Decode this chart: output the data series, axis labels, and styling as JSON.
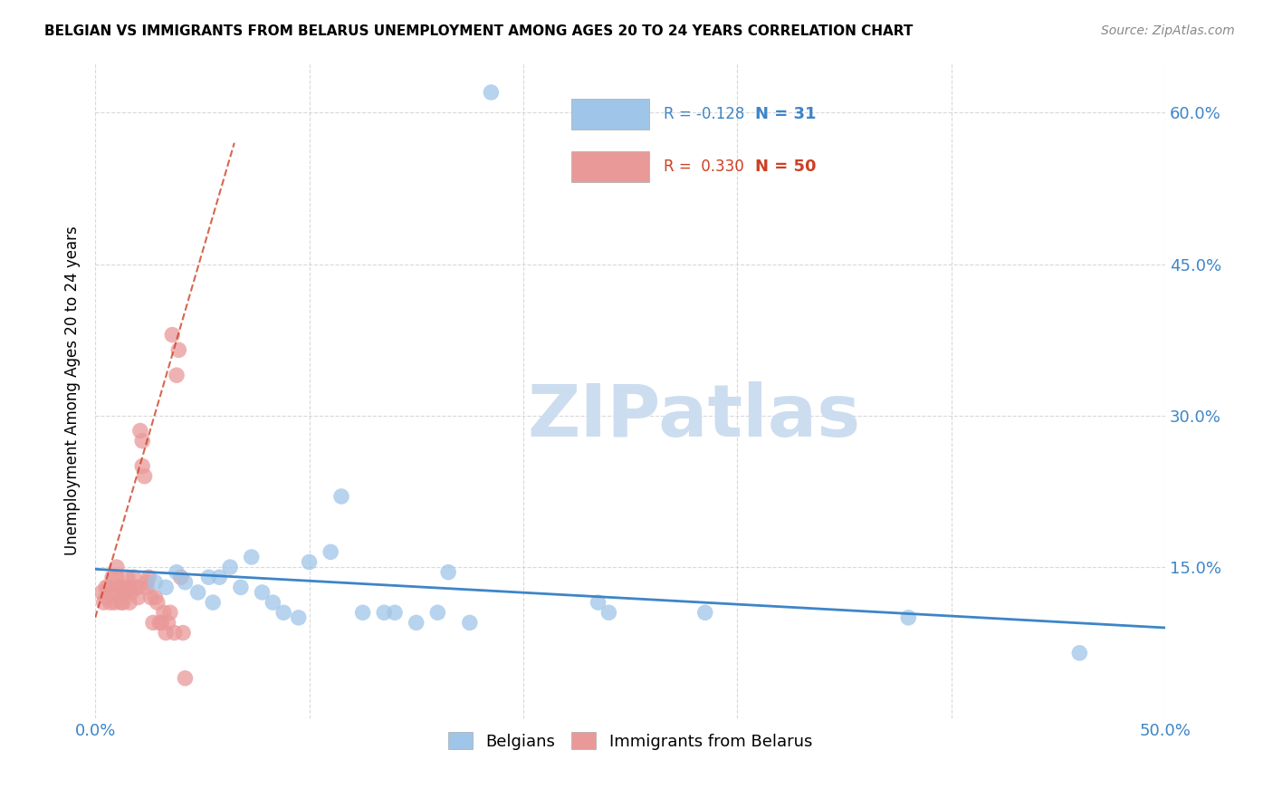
{
  "title": "BELGIAN VS IMMIGRANTS FROM BELARUS UNEMPLOYMENT AMONG AGES 20 TO 24 YEARS CORRELATION CHART",
  "source": "Source: ZipAtlas.com",
  "ylabel": "Unemployment Among Ages 20 to 24 years",
  "xlim": [
    0.0,
    0.5
  ],
  "ylim": [
    0.0,
    0.65
  ],
  "yticks": [
    0.0,
    0.15,
    0.3,
    0.45,
    0.6
  ],
  "ytick_labels": [
    "",
    "15.0%",
    "30.0%",
    "45.0%",
    "60.0%"
  ],
  "xticks": [
    0.0,
    0.1,
    0.2,
    0.3,
    0.4,
    0.5
  ],
  "xtick_labels": [
    "0.0%",
    "",
    "",
    "",
    "",
    "50.0%"
  ],
  "background_color": "#ffffff",
  "grid_color": "#d0d0d0",
  "watermark_text": "ZIPatlas",
  "legend_R_blue": "-0.128",
  "legend_N_blue": "31",
  "legend_R_pink": "0.330",
  "legend_N_pink": "50",
  "blue_color": "#9fc5e8",
  "pink_color": "#ea9999",
  "blue_line_color": "#3d85c8",
  "pink_line_color": "#cc4125",
  "belgians_x": [
    0.028,
    0.033,
    0.038,
    0.042,
    0.048,
    0.053,
    0.055,
    0.058,
    0.063,
    0.068,
    0.073,
    0.078,
    0.083,
    0.088,
    0.095,
    0.1,
    0.11,
    0.115,
    0.125,
    0.135,
    0.14,
    0.15,
    0.16,
    0.165,
    0.175,
    0.185,
    0.235,
    0.24,
    0.285,
    0.38,
    0.46
  ],
  "belgians_y": [
    0.135,
    0.13,
    0.145,
    0.135,
    0.125,
    0.14,
    0.115,
    0.14,
    0.15,
    0.13,
    0.16,
    0.125,
    0.115,
    0.105,
    0.1,
    0.155,
    0.165,
    0.22,
    0.105,
    0.105,
    0.105,
    0.095,
    0.105,
    0.145,
    0.095,
    0.62,
    0.115,
    0.105,
    0.105,
    0.1,
    0.065
  ],
  "belarus_x": [
    0.003,
    0.004,
    0.005,
    0.005,
    0.006,
    0.007,
    0.008,
    0.008,
    0.009,
    0.01,
    0.01,
    0.011,
    0.012,
    0.012,
    0.013,
    0.013,
    0.014,
    0.015,
    0.015,
    0.016,
    0.016,
    0.017,
    0.018,
    0.019,
    0.02,
    0.02,
    0.021,
    0.022,
    0.022,
    0.023,
    0.024,
    0.024,
    0.025,
    0.026,
    0.027,
    0.028,
    0.029,
    0.03,
    0.031,
    0.032,
    0.033,
    0.034,
    0.035,
    0.036,
    0.037,
    0.038,
    0.039,
    0.04,
    0.041,
    0.042
  ],
  "belarus_y": [
    0.125,
    0.115,
    0.13,
    0.12,
    0.13,
    0.115,
    0.14,
    0.125,
    0.115,
    0.15,
    0.14,
    0.13,
    0.125,
    0.115,
    0.13,
    0.115,
    0.125,
    0.14,
    0.13,
    0.13,
    0.115,
    0.125,
    0.14,
    0.13,
    0.13,
    0.12,
    0.285,
    0.275,
    0.25,
    0.24,
    0.135,
    0.13,
    0.14,
    0.12,
    0.095,
    0.12,
    0.115,
    0.095,
    0.095,
    0.105,
    0.085,
    0.095,
    0.105,
    0.38,
    0.085,
    0.34,
    0.365,
    0.14,
    0.085,
    0.04
  ],
  "blue_line_x0": 0.0,
  "blue_line_y0": 0.148,
  "blue_line_x1": 0.5,
  "blue_line_y1": 0.09,
  "pink_line_x0": 0.0,
  "pink_line_y0": 0.1,
  "pink_line_x1": 0.065,
  "pink_line_y1": 0.57
}
